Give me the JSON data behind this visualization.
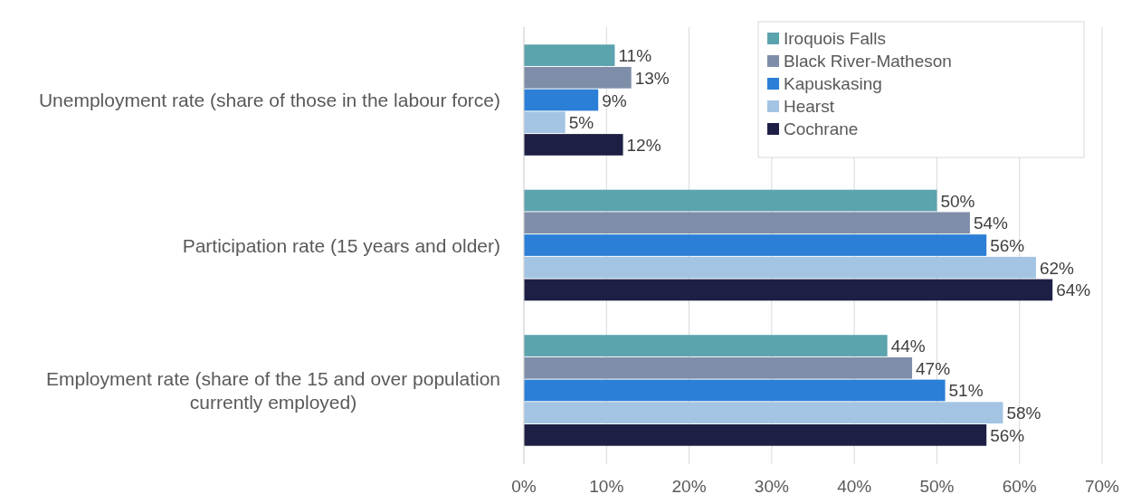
{
  "chart_data": {
    "type": "bar",
    "orientation": "horizontal",
    "categories": [
      "Unemployment rate (share of those in the labour force)",
      "Participation rate (15 years and older)",
      "Employment rate (share of the 15 and over population currently employed)"
    ],
    "series": [
      {
        "name": "Iroquois Falls",
        "color": "#5ba3ad",
        "values": [
          11,
          50,
          44
        ],
        "value_labels": [
          "11%",
          "50%",
          "44%"
        ]
      },
      {
        "name": "Black River-Matheson",
        "color": "#7f8ea8",
        "values": [
          13,
          54,
          47
        ],
        "value_labels": [
          "13%",
          "54%",
          "47%"
        ]
      },
      {
        "name": "Kapuskasing",
        "color": "#2b7fd6",
        "values": [
          9,
          56,
          51
        ],
        "value_labels": [
          "9%",
          "56%",
          "51%"
        ]
      },
      {
        "name": "Hearst",
        "color": "#a3c4e3",
        "values": [
          5,
          62,
          58
        ],
        "value_labels": [
          "5%",
          "62%",
          "58%"
        ]
      },
      {
        "name": "Cochrane",
        "color": "#1e1f45",
        "values": [
          12,
          64,
          56
        ],
        "value_labels": [
          "12%",
          "64%",
          "56%"
        ]
      }
    ],
    "xlim": [
      0,
      70
    ],
    "xticks": [
      {
        "value": 0,
        "label": "0%"
      },
      {
        "value": 10,
        "label": "10%"
      },
      {
        "value": 20,
        "label": "20%"
      },
      {
        "value": 30,
        "label": "30%"
      },
      {
        "value": 40,
        "label": "40%"
      },
      {
        "value": 50,
        "label": "50%"
      },
      {
        "value": 60,
        "label": "60%"
      },
      {
        "value": 70,
        "label": "70%"
      }
    ],
    "grid": "x",
    "legend": "top right"
  }
}
